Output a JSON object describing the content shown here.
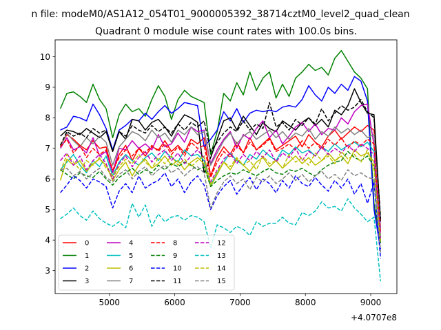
{
  "figure": {
    "suptitle": "n file: modeM0/AS1A12_054T01_9000005392_38714cztM0_level2_quad_clean",
    "title": "Quadrant 0 module wise count rates with 100.0s bins.",
    "offset_label": "+4.0707e8"
  },
  "chart_data": {
    "type": "line",
    "title": "Quadrant 0 module wise count rates with 100.0s bins.",
    "xlabel": "",
    "ylabel": "",
    "x_offset": 407070000,
    "xlim": [
      4170,
      9400
    ],
    "ylim": [
      2.25,
      10.55
    ],
    "xticks": [
      5000,
      6000,
      7000,
      8000,
      9000
    ],
    "xtick_labels": [
      "5000",
      "6000",
      "7000",
      "8000",
      "9000"
    ],
    "yticks": [
      3,
      4,
      5,
      6,
      7,
      8,
      9,
      10
    ],
    "ytick_labels": [
      "3",
      "4",
      "5",
      "6",
      "7",
      "8",
      "9",
      "10"
    ],
    "grid": false,
    "legend_placement": "lower-left",
    "legend_columns": 4,
    "x": [
      4250,
      4350,
      4450,
      4550,
      4650,
      4750,
      4850,
      4950,
      5050,
      5150,
      5250,
      5350,
      5450,
      5550,
      5650,
      5750,
      5850,
      5950,
      6050,
      6150,
      6250,
      6350,
      6450,
      6550,
      6650,
      6750,
      6850,
      6950,
      7050,
      7150,
      7250,
      7350,
      7450,
      7550,
      7650,
      7750,
      7850,
      7950,
      8050,
      8150,
      8250,
      8350,
      8450,
      8550,
      8650,
      8750,
      8850,
      8950,
      9050,
      9150
    ],
    "series": [
      {
        "name": "0",
        "color": "#ff0000",
        "dash": "solid",
        "values": [
          7.1,
          7.45,
          7.3,
          7.1,
          6.95,
          7.25,
          7.0,
          7.05,
          6.2,
          6.8,
          7.1,
          6.6,
          7.0,
          6.75,
          7.05,
          6.95,
          7.25,
          6.9,
          7.1,
          6.85,
          7.3,
          7.15,
          7.35,
          6.1,
          6.7,
          7.05,
          6.8,
          7.2,
          6.85,
          7.35,
          6.95,
          7.15,
          7.35,
          6.95,
          7.1,
          7.25,
          7.4,
          7.05,
          7.45,
          7.2,
          7.05,
          7.4,
          7.6,
          7.3,
          7.5,
          7.7,
          7.55,
          7.75,
          7.6,
          4.6
        ]
      },
      {
        "name": "1",
        "color": "#008000",
        "dash": "solid",
        "values": [
          8.3,
          8.8,
          8.85,
          8.7,
          8.5,
          9.1,
          8.6,
          8.3,
          7.35,
          8.1,
          8.45,
          8.2,
          8.3,
          8.05,
          8.6,
          9.05,
          8.7,
          7.95,
          8.6,
          8.9,
          8.7,
          8.6,
          8.5,
          6.8,
          7.55,
          8.8,
          8.55,
          9.15,
          8.75,
          9.5,
          8.9,
          9.3,
          9.5,
          8.65,
          9.1,
          8.7,
          9.3,
          9.5,
          9.75,
          9.55,
          9.65,
          9.4,
          9.95,
          10.2,
          9.85,
          9.5,
          9.3,
          8.95,
          5.2,
          3.9
        ]
      },
      {
        "name": "2",
        "color": "#0000ff",
        "dash": "solid",
        "values": [
          7.6,
          7.7,
          8.05,
          8.0,
          7.9,
          8.45,
          8.1,
          7.65,
          6.95,
          7.6,
          7.75,
          7.95,
          7.9,
          8.15,
          7.95,
          8.2,
          8.4,
          8.15,
          8.3,
          8.5,
          8.45,
          8.4,
          7.05,
          7.3,
          7.6,
          8.2,
          7.9,
          8.3,
          7.85,
          8.15,
          8.25,
          8.2,
          8.25,
          8.2,
          8.35,
          8.4,
          8.35,
          8.6,
          9.05,
          8.75,
          8.55,
          9.0,
          8.8,
          9.1,
          8.9,
          9.35,
          9.2,
          8.55,
          5.0,
          3.7
        ]
      },
      {
        "name": "3",
        "color": "#000000",
        "dash": "solid",
        "values": [
          7.4,
          7.6,
          7.55,
          7.45,
          7.65,
          7.5,
          7.35,
          7.55,
          6.9,
          7.55,
          7.3,
          7.95,
          7.9,
          7.6,
          7.85,
          7.95,
          7.7,
          7.4,
          7.8,
          8.1,
          8.0,
          7.85,
          6.2,
          6.7,
          7.3,
          7.9,
          8.0,
          7.6,
          8.05,
          7.75,
          7.45,
          7.85,
          7.65,
          7.55,
          7.9,
          7.75,
          7.6,
          7.85,
          8.0,
          7.75,
          7.95,
          7.7,
          8.25,
          8.1,
          8.4,
          8.95,
          8.5,
          8.15,
          8.1,
          4.6
        ]
      },
      {
        "name": "4",
        "color": "#bf00bf",
        "dash": "solid",
        "values": [
          7.0,
          7.35,
          6.95,
          7.05,
          6.85,
          7.35,
          6.75,
          6.9,
          6.2,
          7.0,
          6.95,
          7.25,
          7.0,
          7.15,
          6.95,
          7.45,
          7.05,
          7.15,
          7.5,
          7.2,
          7.7,
          7.55,
          7.6,
          6.5,
          6.95,
          7.3,
          7.55,
          7.0,
          7.45,
          7.3,
          7.65,
          7.9,
          7.35,
          7.6,
          7.15,
          7.4,
          7.7,
          7.85,
          7.55,
          7.8,
          7.45,
          7.65,
          7.6,
          8.0,
          7.8,
          8.2,
          8.4,
          8.45,
          7.1,
          4.4
        ]
      },
      {
        "name": "5",
        "color": "#00bfbf",
        "dash": "solid",
        "values": [
          6.3,
          6.55,
          6.8,
          6.45,
          6.2,
          6.6,
          6.4,
          6.75,
          6.1,
          6.55,
          6.8,
          6.6,
          6.45,
          6.7,
          6.85,
          6.6,
          6.9,
          6.7,
          6.55,
          6.95,
          6.75,
          6.8,
          6.6,
          5.8,
          6.2,
          6.55,
          6.85,
          6.6,
          6.45,
          6.8,
          6.65,
          6.95,
          6.75,
          6.6,
          6.95,
          6.8,
          7.05,
          6.85,
          6.95,
          6.75,
          7.05,
          6.9,
          7.15,
          6.95,
          7.1,
          7.2,
          7.05,
          7.2,
          6.9,
          4.1
        ]
      },
      {
        "name": "6",
        "color": "#bfbf00",
        "dash": "solid",
        "values": [
          5.95,
          6.65,
          6.45,
          6.6,
          6.25,
          6.5,
          6.65,
          6.45,
          5.95,
          6.3,
          6.55,
          6.1,
          6.45,
          6.65,
          6.35,
          6.5,
          6.75,
          6.45,
          6.6,
          6.3,
          6.55,
          6.7,
          6.5,
          5.75,
          6.15,
          6.55,
          6.3,
          6.65,
          6.45,
          6.25,
          6.55,
          6.7,
          6.4,
          6.6,
          6.35,
          6.55,
          6.75,
          6.5,
          6.7,
          6.45,
          6.6,
          6.85,
          6.6,
          6.75,
          6.5,
          6.95,
          6.75,
          6.85,
          6.55,
          4.0
        ]
      },
      {
        "name": "7",
        "color": "#808080",
        "dash": "solid",
        "values": [
          7.05,
          7.5,
          7.25,
          7.05,
          7.35,
          7.15,
          7.4,
          7.2,
          6.45,
          7.05,
          7.3,
          7.55,
          7.45,
          7.25,
          7.6,
          7.35,
          7.5,
          7.2,
          7.6,
          7.45,
          7.7,
          7.45,
          7.55,
          6.45,
          6.85,
          7.25,
          7.5,
          7.15,
          7.4,
          7.55,
          7.3,
          7.45,
          7.6,
          7.35,
          7.55,
          7.3,
          7.5,
          7.4,
          7.65,
          7.3,
          7.55,
          7.4,
          7.7,
          7.5,
          7.65,
          7.45,
          7.6,
          7.35,
          7.45,
          4.3
        ]
      },
      {
        "name": "8",
        "color": "#ff0000",
        "dash": "dashed",
        "values": [
          7.05,
          7.3,
          6.85,
          7.1,
          6.7,
          7.0,
          6.8,
          6.95,
          6.3,
          6.7,
          6.95,
          6.75,
          7.0,
          6.85,
          7.1,
          6.9,
          7.15,
          6.8,
          7.05,
          6.75,
          7.2,
          7.0,
          7.1,
          6.05,
          6.55,
          6.9,
          6.7,
          7.1,
          6.85,
          7.2,
          6.95,
          7.1,
          7.3,
          6.9,
          7.0,
          7.15,
          6.95,
          7.25,
          7.0,
          7.2,
          6.95,
          7.3,
          7.1,
          7.35,
          7.0,
          7.25,
          7.1,
          7.3,
          7.15,
          4.2
        ]
      },
      {
        "name": "9",
        "color": "#008000",
        "dash": "dashed",
        "values": [
          6.3,
          6.15,
          6.0,
          6.2,
          6.1,
          6.05,
          6.25,
          6.0,
          5.8,
          6.05,
          6.2,
          6.35,
          6.15,
          6.3,
          6.2,
          6.45,
          6.3,
          6.5,
          6.4,
          6.55,
          6.45,
          6.3,
          6.4,
          5.75,
          5.95,
          6.1,
          6.2,
          6.15,
          6.3,
          6.2,
          6.1,
          6.25,
          6.35,
          6.2,
          6.15,
          6.3,
          6.25,
          6.35,
          6.2,
          6.1,
          6.3,
          6.45,
          6.55,
          6.6,
          6.9,
          6.7,
          6.6,
          6.75,
          6.4,
          3.95
        ]
      },
      {
        "name": "10",
        "color": "#0000ff",
        "dash": "dashed",
        "values": [
          5.55,
          5.8,
          6.1,
          5.95,
          5.7,
          6.0,
          5.9,
          5.75,
          5.05,
          5.6,
          5.85,
          5.55,
          6.1,
          5.7,
          5.85,
          5.95,
          6.2,
          5.75,
          6.0,
          5.55,
          5.9,
          6.1,
          5.8,
          5.0,
          5.45,
          5.75,
          5.95,
          5.5,
          5.8,
          6.05,
          5.65,
          6.0,
          5.85,
          5.55,
          5.95,
          5.7,
          6.1,
          5.85,
          5.75,
          6.05,
          5.8,
          5.6,
          5.95,
          5.7,
          6.0,
          5.5,
          5.85,
          5.2,
          5.9,
          3.4
        ]
      },
      {
        "name": "11",
        "color": "#000000",
        "dash": "dashed",
        "values": [
          7.1,
          7.55,
          7.4,
          7.5,
          7.35,
          7.65,
          7.5,
          7.6,
          6.9,
          7.55,
          7.4,
          7.75,
          7.6,
          7.5,
          7.75,
          7.55,
          7.7,
          7.5,
          7.8,
          7.6,
          7.85,
          7.7,
          7.9,
          6.9,
          7.2,
          7.5,
          7.7,
          7.55,
          7.9,
          7.6,
          7.8,
          7.65,
          8.5,
          7.7,
          7.85,
          7.6,
          7.95,
          7.75,
          8.0,
          7.8,
          8.3,
          7.9,
          8.15,
          8.4,
          8.25,
          8.35,
          8.6,
          8.2,
          8.0,
          4.7
        ]
      },
      {
        "name": "12",
        "color": "#bf00bf",
        "dash": "dashed",
        "values": [
          6.6,
          6.85,
          6.45,
          6.75,
          6.3,
          6.6,
          6.8,
          6.5,
          6.0,
          6.5,
          6.75,
          6.4,
          6.7,
          6.9,
          6.55,
          6.8,
          6.95,
          6.6,
          6.85,
          6.5,
          6.75,
          6.95,
          6.7,
          5.9,
          6.3,
          6.65,
          6.85,
          6.5,
          6.8,
          6.6,
          6.9,
          6.7,
          6.95,
          6.55,
          6.85,
          6.7,
          7.0,
          6.6,
          6.9,
          6.75,
          7.05,
          6.8,
          7.0,
          6.85,
          7.1,
          6.9,
          7.15,
          7.0,
          6.8,
          4.05
        ]
      },
      {
        "name": "13",
        "color": "#00bfbf",
        "dash": "dashed",
        "values": [
          4.7,
          4.85,
          5.05,
          4.8,
          4.65,
          4.95,
          4.7,
          4.55,
          4.45,
          4.6,
          4.4,
          5.2,
          4.75,
          5.15,
          4.45,
          4.85,
          4.6,
          4.75,
          4.8,
          4.65,
          4.8,
          4.75,
          4.6,
          3.75,
          4.5,
          4.4,
          4.25,
          4.45,
          4.35,
          4.15,
          4.6,
          4.45,
          4.55,
          4.55,
          4.75,
          4.55,
          4.5,
          4.9,
          4.8,
          4.95,
          5.25,
          5.05,
          5.1,
          4.95,
          5.35,
          5.05,
          4.85,
          4.6,
          4.75,
          2.65
        ]
      },
      {
        "name": "14",
        "color": "#bfbf00",
        "dash": "dashed",
        "values": [
          6.25,
          6.8,
          6.55,
          6.3,
          6.6,
          6.45,
          6.7,
          6.35,
          6.1,
          6.4,
          6.65,
          6.5,
          6.8,
          6.55,
          6.35,
          6.7,
          6.5,
          6.75,
          6.45,
          6.65,
          6.4,
          6.6,
          6.75,
          5.85,
          6.25,
          6.55,
          6.4,
          6.7,
          6.45,
          6.6,
          6.3,
          6.75,
          6.5,
          6.6,
          6.35,
          6.8,
          6.55,
          6.7,
          6.45,
          6.85,
          6.6,
          6.75,
          6.5,
          6.9,
          6.65,
          6.8,
          6.55,
          6.95,
          6.3,
          3.9
        ]
      },
      {
        "name": "15",
        "color": "#808080",
        "dash": "dashed",
        "values": [
          6.3,
          6.35,
          6.1,
          6.25,
          6.0,
          6.2,
          6.35,
          6.05,
          5.9,
          6.15,
          6.3,
          6.0,
          6.25,
          6.4,
          6.1,
          6.3,
          6.45,
          6.2,
          6.35,
          6.1,
          6.3,
          6.4,
          6.2,
          5.05,
          5.55,
          5.9,
          6.1,
          5.85,
          6.0,
          5.65,
          6.05,
          5.9,
          6.1,
          5.85,
          6.0,
          6.2,
          5.95,
          6.15,
          5.9,
          6.1,
          6.25,
          6.0,
          6.15,
          5.95,
          6.3,
          6.1,
          6.2,
          6.05,
          6.0,
          3.6
        ]
      }
    ]
  }
}
